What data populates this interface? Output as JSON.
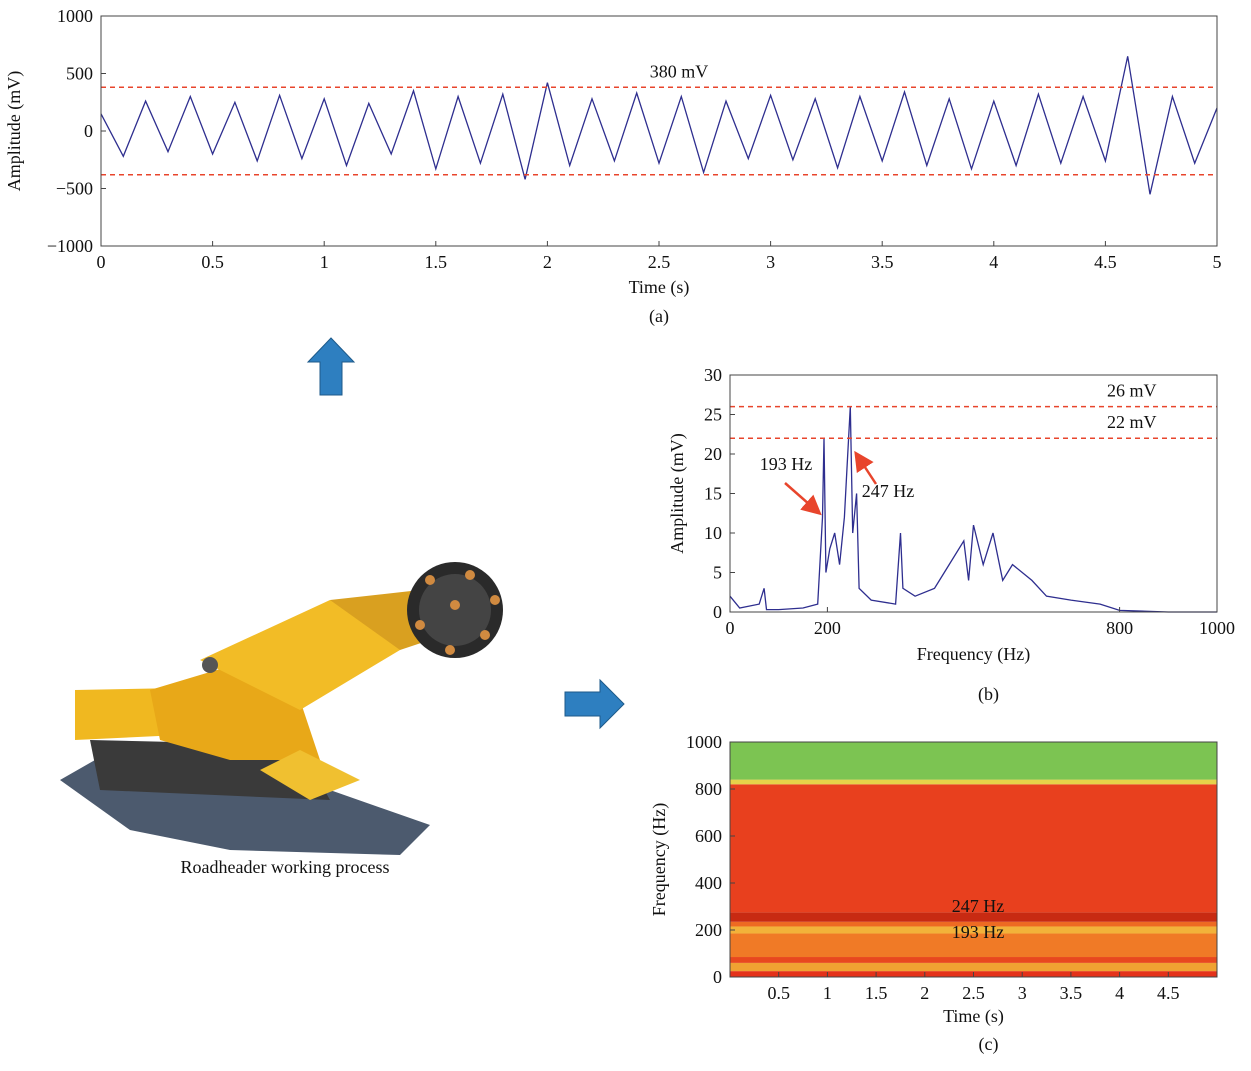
{
  "chart_data": [
    {
      "type": "line",
      "x": [
        0,
        0.1,
        0.2,
        0.3,
        0.4,
        0.5,
        0.6,
        0.7,
        0.8,
        0.9,
        1,
        1.1,
        1.2,
        1.3,
        1.4,
        1.5,
        1.6,
        1.7,
        1.8,
        1.9,
        2,
        2.1,
        2.2,
        2.3,
        2.4,
        2.5,
        2.6,
        2.7,
        2.8,
        2.9,
        3,
        3.1,
        3.2,
        3.3,
        3.4,
        3.5,
        3.6,
        3.7,
        3.8,
        3.9,
        4,
        4.1,
        4.2,
        4.3,
        4.4,
        4.5,
        4.6,
        4.7,
        4.8,
        4.9,
        5
      ],
      "values": [
        150,
        -220,
        260,
        -180,
        300,
        -200,
        250,
        -260,
        310,
        -240,
        280,
        -300,
        240,
        -200,
        350,
        -330,
        300,
        -280,
        320,
        -420,
        420,
        -300,
        280,
        -260,
        330,
        -280,
        300,
        -360,
        260,
        -240,
        310,
        -250,
        280,
        -320,
        300,
        -260,
        340,
        -300,
        280,
        -330,
        260,
        -300,
        320,
        -280,
        300,
        -260,
        650,
        -550,
        300,
        -280,
        200
      ],
      "color": "#2e2e8f",
      "xlim": [
        0,
        5
      ],
      "ylim": [
        -1000,
        1000
      ],
      "xticks": [
        0,
        0.5,
        1,
        1.5,
        2,
        2.5,
        3,
        3.5,
        4,
        4.5,
        5
      ],
      "yticks": [
        {
          "value": -1000,
          "label": "−1000"
        },
        {
          "value": -500,
          "label": "−500"
        },
        0,
        500,
        1000
      ],
      "xlabel": "Time (s)",
      "ylabel": "Amplitude (mV)",
      "caption": "(a)",
      "reference_lines": [
        {
          "value": 380,
          "label": "380 mV"
        },
        {
          "value": -380
        }
      ],
      "reference_color": "#e8452c"
    },
    {
      "type": "line",
      "x": [
        0,
        20,
        60,
        70,
        75,
        100,
        150,
        180,
        190,
        193,
        197,
        205,
        215,
        225,
        235,
        240,
        247,
        252,
        260,
        265,
        290,
        340,
        350,
        355,
        380,
        420,
        440,
        480,
        490,
        500,
        520,
        540,
        560,
        580,
        620,
        650,
        700,
        760,
        800,
        900,
        1000
      ],
      "values": [
        2,
        0.5,
        1,
        3,
        0.3,
        0.3,
        0.5,
        1,
        12,
        22,
        5,
        8,
        10,
        6,
        12,
        18,
        26,
        10,
        15,
        3,
        1.5,
        1,
        10,
        3,
        2,
        3,
        5,
        9,
        4,
        11,
        6,
        10,
        4,
        6,
        4,
        2,
        1.5,
        1,
        0.2,
        0,
        0
      ],
      "color": "#2e2e8f",
      "xlim": [
        0,
        1000
      ],
      "ylim": [
        0,
        30
      ],
      "xticks": [
        0,
        200,
        800,
        1000
      ],
      "yticks": [
        0,
        5,
        10,
        15,
        20,
        25,
        30
      ],
      "xlabel": "Frequency (Hz)",
      "ylabel": "Amplitude (mV)",
      "caption": "(b)",
      "reference_lines": [
        {
          "value": 26,
          "label": "26 mV"
        },
        {
          "value": 22,
          "label": "22 mV"
        }
      ],
      "reference_color": "#e8452c",
      "annotations": [
        "193 Hz",
        "247 Hz"
      ]
    },
    {
      "type": "heatmap",
      "xlim": [
        0,
        5
      ],
      "ylim": [
        0,
        1000
      ],
      "xticks": [
        0.5,
        1,
        1.5,
        2,
        2.5,
        3,
        3.5,
        4,
        4.5
      ],
      "yticks": [
        0,
        200,
        400,
        600,
        800,
        1000
      ],
      "bands": [
        {
          "from": 0,
          "to": 25,
          "color": "#e4321a"
        },
        {
          "from": 25,
          "to": 60,
          "color": "#f0a232"
        },
        {
          "from": 60,
          "to": 85,
          "color": "#e8481e"
        },
        {
          "from": 85,
          "to": 185,
          "color": "#f07a26"
        },
        {
          "from": 185,
          "to": 215,
          "color": "#f2b23a"
        },
        {
          "from": 215,
          "to": 235,
          "color": "#ee6a22"
        },
        {
          "from": 235,
          "to": 275,
          "color": "#c82a12"
        },
        {
          "from": 275,
          "to": 820,
          "color": "#e8401e"
        },
        {
          "from": 820,
          "to": 840,
          "color": "#e6d24a"
        },
        {
          "from": 840,
          "to": 1000,
          "color": "#7cc452"
        }
      ],
      "xlabel": "Time (s)",
      "ylabel": "Frequency (Hz)",
      "caption": "(c)",
      "annotations": [
        "247 Hz",
        "193 Hz"
      ]
    }
  ],
  "image_caption": "Roadheader working process"
}
